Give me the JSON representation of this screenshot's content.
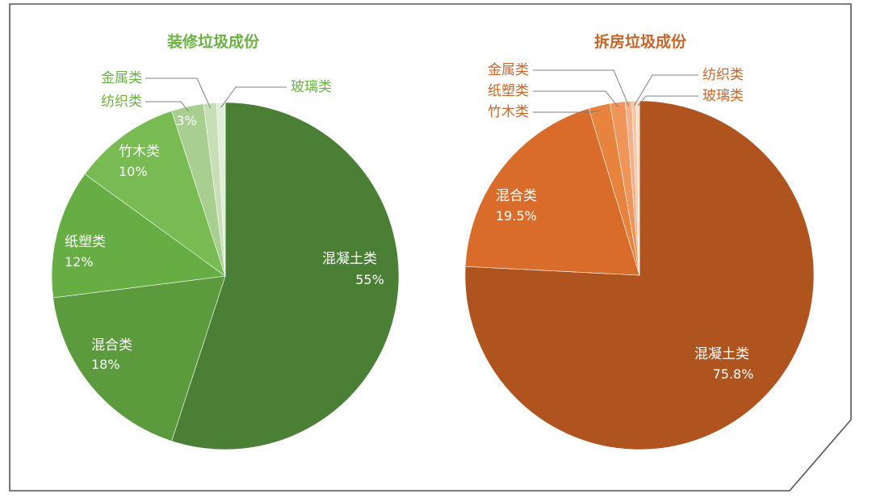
{
  "chart_data": [
    {
      "type": "pie",
      "title": "装修垃圾成份",
      "colors": {
        "title": "#6ab343",
        "label_dark": "#ffffff",
        "callout": "#6ab343",
        "leader": "#7f7f7f"
      },
      "slices": [
        {
          "label": "混凝土类",
          "value": 55,
          "value_text": "55%",
          "color": "#4a7f35"
        },
        {
          "label": "混合类",
          "value": 18,
          "value_text": "18%",
          "color": "#5c9a3e"
        },
        {
          "label": "纸塑类",
          "value": 12,
          "value_text": "12%",
          "color": "#66ad44"
        },
        {
          "label": "竹木类",
          "value": 10,
          "value_text": "10%",
          "color": "#77bb52"
        },
        {
          "label": "纺织类",
          "value": 3,
          "value_text": "3%",
          "color": "#a8cf90"
        },
        {
          "label": "金属类",
          "value": 1.2,
          "value_text": "",
          "color": "#c6dfb6"
        },
        {
          "label": "玻璃类",
          "value": 0.8,
          "value_text": "",
          "color": "#e1eed7"
        }
      ]
    },
    {
      "type": "pie",
      "title": "拆房垃圾成份",
      "colors": {
        "title": "#c8662a",
        "label_dark": "#ffffff",
        "callout": "#c8662a",
        "leader": "#7f7f7f"
      },
      "slices": [
        {
          "label": "混凝土类",
          "value": 75.8,
          "value_text": "75.8%",
          "color": "#b0541f"
        },
        {
          "label": "混合类",
          "value": 19.5,
          "value_text": "19.5%",
          "color": "#d96c2a"
        },
        {
          "label": "竹木类",
          "value": 2.0,
          "value_text": "",
          "color": "#e8833e"
        },
        {
          "label": "纸塑类",
          "value": 1.4,
          "value_text": "",
          "color": "#f0955a"
        },
        {
          "label": "金属类",
          "value": 0.6,
          "value_text": "",
          "color": "#f4b089"
        },
        {
          "label": "纺织类",
          "value": 0.4,
          "value_text": "",
          "color": "#f7c7a8"
        },
        {
          "label": "玻璃类",
          "value": 0.3,
          "value_text": "",
          "color": "#fadccb"
        }
      ]
    }
  ]
}
